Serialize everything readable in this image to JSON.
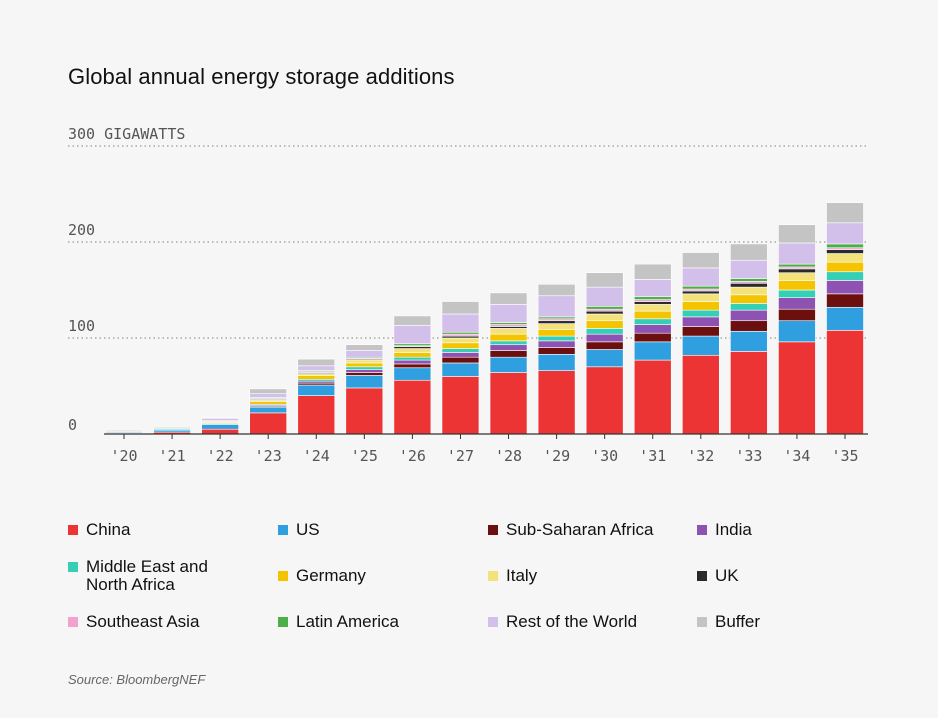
{
  "chart_data": {
    "type": "bar",
    "stacked": true,
    "title": "Global annual energy storage additions",
    "ylabel": "GIGAWATTS",
    "ylim": [
      0,
      300
    ],
    "y_ticks": [
      {
        "value": 300,
        "label": "300 GIGAWATTS"
      },
      {
        "value": 200,
        "label": "200"
      },
      {
        "value": 100,
        "label": "100"
      },
      {
        "value": 0,
        "label": "0"
      }
    ],
    "categories": [
      "'20",
      "'21",
      "'22",
      "'23",
      "'24",
      "'25",
      "'26",
      "'27",
      "'28",
      "'29",
      "'30",
      "'31",
      "'32",
      "'33",
      "'34",
      "'35"
    ],
    "series": [
      {
        "name": "China",
        "color": "#ec3434",
        "values": [
          1,
          2,
          5,
          22,
          40,
          48,
          56,
          60,
          64,
          66,
          70,
          77,
          82,
          86,
          96,
          108
        ]
      },
      {
        "name": "US",
        "color": "#2f9fdf",
        "values": [
          1,
          2,
          5,
          6,
          11,
          13,
          13,
          14,
          16,
          17,
          18,
          19,
          20,
          21,
          22,
          24
        ]
      },
      {
        "name": "Sub-Saharan Africa",
        "color": "#6b0f0f",
        "values": [
          0,
          0,
          0,
          1,
          2,
          3,
          4,
          6,
          7,
          7,
          8,
          9,
          10,
          11,
          12,
          14
        ]
      },
      {
        "name": "India",
        "color": "#8e52b3",
        "values": [
          0,
          0,
          0,
          1,
          2,
          3,
          4,
          5,
          6,
          7,
          8,
          9,
          10,
          11,
          12,
          14
        ]
      },
      {
        "name": "Middle East and\nNorth Africa",
        "color": "#35cfb5",
        "values": [
          0,
          1,
          1,
          1,
          2,
          3,
          3,
          4,
          4,
          5,
          6,
          6,
          7,
          7,
          8,
          9
        ]
      },
      {
        "name": "Germany",
        "color": "#f5c400",
        "values": [
          0,
          0,
          1,
          3,
          4,
          4,
          5,
          6,
          7,
          7,
          8,
          8,
          9,
          9,
          10,
          10
        ]
      },
      {
        "name": "Italy",
        "color": "#f3e27a",
        "values": [
          0,
          0,
          1,
          1,
          2,
          3,
          4,
          5,
          6,
          6,
          7,
          7,
          8,
          8,
          8,
          9
        ]
      },
      {
        "name": "UK",
        "color": "#2a2a2a",
        "values": [
          0,
          0,
          0,
          1,
          1,
          1,
          2,
          2,
          2,
          3,
          3,
          3,
          3,
          4,
          4,
          4
        ]
      },
      {
        "name": "Southeast Asia",
        "color": "#f2a2cf",
        "values": [
          0,
          0,
          1,
          1,
          1,
          1,
          1,
          2,
          2,
          2,
          2,
          2,
          2,
          2,
          2,
          2
        ]
      },
      {
        "name": "Latin America",
        "color": "#4caf4a",
        "values": [
          0,
          0,
          0,
          1,
          1,
          1,
          2,
          2,
          2,
          2,
          3,
          3,
          3,
          3,
          3,
          4
        ]
      },
      {
        "name": "Rest of the World",
        "color": "#d2bfea",
        "values": [
          1,
          1,
          2,
          4,
          5,
          7,
          19,
          19,
          19,
          22,
          20,
          18,
          19,
          19,
          22,
          22
        ]
      },
      {
        "name": "Buffer",
        "color": "#c4c4c4",
        "values": [
          1,
          1,
          1,
          5,
          7,
          6,
          10,
          13,
          12,
          12,
          15,
          16,
          16,
          17,
          19,
          21
        ]
      }
    ]
  },
  "legend_order": [
    0,
    1,
    2,
    3,
    4,
    5,
    6,
    7,
    8,
    9,
    10,
    11
  ],
  "source": "Source: BloombergNEF"
}
